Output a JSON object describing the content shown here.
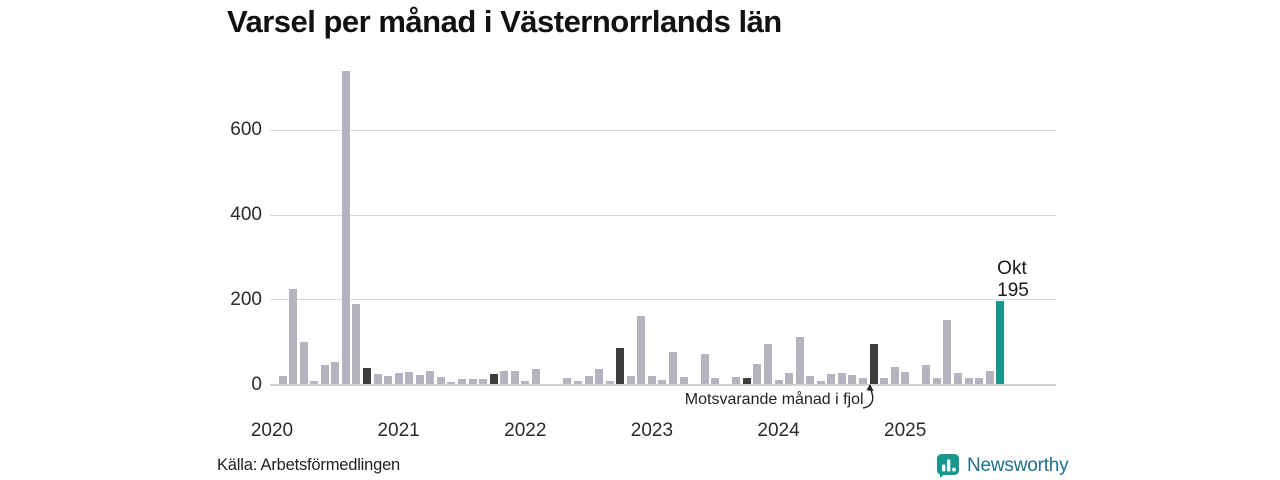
{
  "title": "Varsel per månad i Västernorrlands län",
  "footer": {
    "source": "Källa: Arbetsförmedlingen",
    "brand_name": "Newsworthy"
  },
  "peak_label": {
    "month": "Okt",
    "value": "195"
  },
  "annotation": {
    "text": "Motsvarande månad i fjol",
    "target_month": "2024-10"
  },
  "colors": {
    "bar_default": "#b5b3c0",
    "bar_same_month_prior": "#3d3d3d",
    "bar_current": "#14998c",
    "gridline": "#d9d9d9",
    "axisline": "#d2d2d2",
    "text": "#1a1a1a",
    "brand_icon": "#14998c",
    "brand_text": "#1e7187"
  },
  "chart_data": {
    "type": "bar",
    "title": "Varsel per månad i Västernorrlands län",
    "xlabel": "",
    "ylabel": "",
    "grid": true,
    "legend": false,
    "ylim": [
      0,
      745
    ],
    "yticks": [
      0,
      200,
      400,
      600
    ],
    "xtick_labels": [
      "2020",
      "2021",
      "2022",
      "2023",
      "2024",
      "2025"
    ],
    "xtick_month_index": [
      0,
      12,
      24,
      36,
      48,
      60
    ],
    "highlight_dark_months": [
      "2020-10",
      "2021-10",
      "2022-10",
      "2023-10",
      "2024-10"
    ],
    "highlight_current_month": "2025-10",
    "x": [
      "2020-01",
      "2020-02",
      "2020-03",
      "2020-04",
      "2020-05",
      "2020-06",
      "2020-07",
      "2020-08",
      "2020-09",
      "2020-10",
      "2020-11",
      "2020-12",
      "2021-01",
      "2021-02",
      "2021-03",
      "2021-04",
      "2021-05",
      "2021-06",
      "2021-07",
      "2021-08",
      "2021-09",
      "2021-10",
      "2021-11",
      "2021-12",
      "2022-01",
      "2022-02",
      "2022-03",
      "2022-04",
      "2022-05",
      "2022-06",
      "2022-07",
      "2022-08",
      "2022-09",
      "2022-10",
      "2022-11",
      "2022-12",
      "2023-01",
      "2023-02",
      "2023-03",
      "2023-04",
      "2023-05",
      "2023-06",
      "2023-07",
      "2023-08",
      "2023-09",
      "2023-10",
      "2023-11",
      "2023-12",
      "2024-01",
      "2024-02",
      "2024-03",
      "2024-04",
      "2024-05",
      "2024-06",
      "2024-07",
      "2024-08",
      "2024-09",
      "2024-10",
      "2024-11",
      "2024-12",
      "2025-01",
      "2025-02",
      "2025-03",
      "2025-04",
      "2025-05",
      "2025-06",
      "2025-07",
      "2025-08",
      "2025-09",
      "2025-10"
    ],
    "values": [
      0,
      18,
      225,
      100,
      6,
      46,
      51,
      740,
      190,
      38,
      24,
      19,
      27,
      29,
      22,
      31,
      17,
      4,
      12,
      12,
      12,
      24,
      31,
      31,
      6,
      35,
      0,
      0,
      14,
      6,
      19,
      35,
      8,
      85,
      19,
      160,
      19,
      10,
      75,
      17,
      0,
      72,
      13,
      0,
      17,
      13,
      48,
      95,
      9,
      25,
      110,
      18,
      6,
      23,
      25,
      21,
      13,
      95,
      15,
      40,
      29,
      0,
      45,
      15,
      150,
      25,
      15,
      15,
      30,
      195
    ]
  }
}
